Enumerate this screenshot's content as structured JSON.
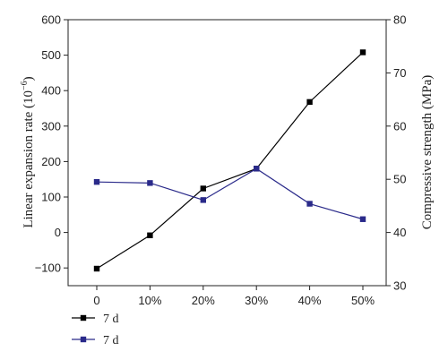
{
  "chart_data": {
    "type": "line",
    "categories": [
      "0",
      "10%",
      "20%",
      "30%",
      "40%",
      "50%"
    ],
    "y_left": {
      "label_main": "Linear expansion rate (10",
      "label_sup": "−6",
      "label_end": ")",
      "ylim": [
        -150,
        600
      ],
      "ticks": [
        -100,
        0,
        100,
        200,
        300,
        400,
        500,
        600
      ],
      "tick_labels": [
        "−100",
        "0",
        "100",
        "200",
        "300",
        "400",
        "500",
        "600"
      ]
    },
    "y_right": {
      "label": "Compressive strength (MPa)",
      "ylim": [
        30,
        80
      ],
      "ticks": [
        30,
        40,
        50,
        60,
        70,
        80
      ],
      "tick_labels": [
        "30",
        "40",
        "50",
        "60",
        "70",
        "80"
      ]
    },
    "series": [
      {
        "name": "7 d",
        "axis": "left",
        "color": "#000000",
        "marker": "square",
        "values": [
          -102,
          -8,
          124,
          180,
          368,
          508
        ]
      },
      {
        "name": "7 d",
        "axis": "right",
        "color": "#2a2a8a",
        "marker": "square",
        "values": [
          49.5,
          49.3,
          46.1,
          52.0,
          45.4,
          42.5
        ]
      }
    ],
    "grid": false,
    "legend": {
      "placement": "bottom-left"
    }
  }
}
